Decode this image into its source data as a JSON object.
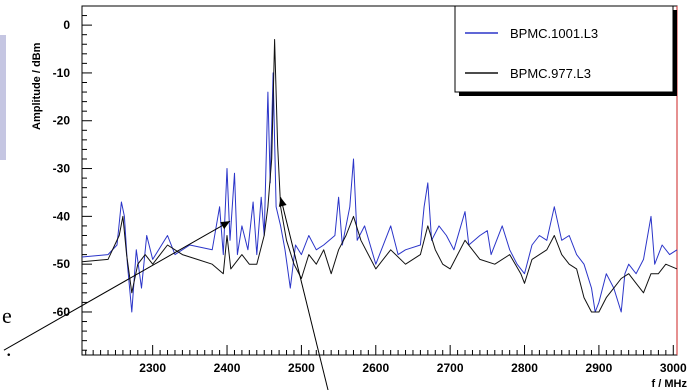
{
  "chart_data": {
    "type": "line",
    "title": "",
    "xlabel": "f / MHz",
    "ylabel": "Amplitude / dBm",
    "xlim": [
      2205,
      3005
    ],
    "ylim": [
      -69,
      4
    ],
    "x_ticks": [
      2300,
      2400,
      2500,
      2600,
      2700,
      2800,
      2900,
      3000
    ],
    "x_tick_labels": [
      "2300",
      "2400",
      "2500",
      "2600",
      "2700",
      "2800",
      "2900",
      "3000"
    ],
    "y_ticks": [
      0,
      -10,
      -20,
      -30,
      -40,
      -50,
      -60
    ],
    "y_tick_labels": [
      "0",
      "-10",
      "-20",
      "-30",
      "-40",
      "-50",
      "-60"
    ],
    "grid": false,
    "legend_position": "top-right",
    "series": [
      {
        "name": "BPMC.1001.L3",
        "color": "#2b35c9",
        "points": [
          [
            2205,
            -48.5
          ],
          [
            2240,
            -48
          ],
          [
            2252,
            -46
          ],
          [
            2258,
            -37
          ],
          [
            2262,
            -40
          ],
          [
            2266,
            -50
          ],
          [
            2272,
            -60
          ],
          [
            2278,
            -47
          ],
          [
            2285,
            -55
          ],
          [
            2292,
            -44
          ],
          [
            2300,
            -49
          ],
          [
            2320,
            -44
          ],
          [
            2330,
            -48
          ],
          [
            2350,
            -46
          ],
          [
            2380,
            -47
          ],
          [
            2390,
            -38
          ],
          [
            2395,
            -48
          ],
          [
            2400,
            -30
          ],
          [
            2404,
            -45
          ],
          [
            2410,
            -31
          ],
          [
            2414,
            -48
          ],
          [
            2420,
            -42
          ],
          [
            2428,
            -47
          ],
          [
            2435,
            -37
          ],
          [
            2440,
            -48
          ],
          [
            2446,
            -36
          ],
          [
            2450,
            -44
          ],
          [
            2455,
            -14
          ],
          [
            2458,
            -33
          ],
          [
            2462,
            -10
          ],
          [
            2466,
            -38
          ],
          [
            2472,
            -42
          ],
          [
            2478,
            -47
          ],
          [
            2485,
            -55
          ],
          [
            2492,
            -46
          ],
          [
            2500,
            -48
          ],
          [
            2510,
            -44
          ],
          [
            2520,
            -47
          ],
          [
            2530,
            -46
          ],
          [
            2545,
            -44
          ],
          [
            2550,
            -36
          ],
          [
            2555,
            -46
          ],
          [
            2565,
            -38
          ],
          [
            2570,
            -28
          ],
          [
            2575,
            -45
          ],
          [
            2585,
            -42
          ],
          [
            2600,
            -50
          ],
          [
            2620,
            -42
          ],
          [
            2630,
            -48
          ],
          [
            2640,
            -47
          ],
          [
            2660,
            -46
          ],
          [
            2665,
            -38
          ],
          [
            2670,
            -33
          ],
          [
            2675,
            -45
          ],
          [
            2685,
            -42
          ],
          [
            2695,
            -44
          ],
          [
            2705,
            -47
          ],
          [
            2720,
            -39
          ],
          [
            2725,
            -46
          ],
          [
            2740,
            -44
          ],
          [
            2750,
            -43
          ],
          [
            2755,
            -48
          ],
          [
            2770,
            -42
          ],
          [
            2780,
            -47
          ],
          [
            2790,
            -50
          ],
          [
            2800,
            -52
          ],
          [
            2810,
            -46
          ],
          [
            2820,
            -44
          ],
          [
            2830,
            -45
          ],
          [
            2840,
            -38
          ],
          [
            2850,
            -45
          ],
          [
            2860,
            -44
          ],
          [
            2870,
            -48
          ],
          [
            2880,
            -50
          ],
          [
            2890,
            -55
          ],
          [
            2895,
            -60
          ],
          [
            2900,
            -58
          ],
          [
            2910,
            -52
          ],
          [
            2920,
            -55
          ],
          [
            2930,
            -60
          ],
          [
            2935,
            -52
          ],
          [
            2940,
            -50
          ],
          [
            2950,
            -52
          ],
          [
            2960,
            -49
          ],
          [
            2970,
            -40
          ],
          [
            2975,
            -50
          ],
          [
            2985,
            -46
          ],
          [
            2995,
            -48
          ],
          [
            3005,
            -47
          ]
        ]
      },
      {
        "name": "BPMC.977.L3",
        "color": "#111111",
        "points": [
          [
            2205,
            -49.5
          ],
          [
            2240,
            -49
          ],
          [
            2255,
            -44
          ],
          [
            2260,
            -40
          ],
          [
            2265,
            -48
          ],
          [
            2272,
            -56
          ],
          [
            2280,
            -50
          ],
          [
            2290,
            -48
          ],
          [
            2300,
            -50
          ],
          [
            2320,
            -46
          ],
          [
            2340,
            -48
          ],
          [
            2360,
            -49
          ],
          [
            2380,
            -50
          ],
          [
            2395,
            -52
          ],
          [
            2400,
            -44
          ],
          [
            2405,
            -51
          ],
          [
            2420,
            -48
          ],
          [
            2430,
            -50
          ],
          [
            2440,
            -50
          ],
          [
            2450,
            -44
          ],
          [
            2455,
            -38
          ],
          [
            2460,
            -28
          ],
          [
            2464,
            -3
          ],
          [
            2468,
            -25
          ],
          [
            2472,
            -38
          ],
          [
            2480,
            -45
          ],
          [
            2490,
            -50
          ],
          [
            2500,
            -53
          ],
          [
            2510,
            -48
          ],
          [
            2520,
            -50
          ],
          [
            2530,
            -47
          ],
          [
            2540,
            -52
          ],
          [
            2550,
            -47
          ],
          [
            2560,
            -44
          ],
          [
            2570,
            -40
          ],
          [
            2580,
            -45
          ],
          [
            2600,
            -51
          ],
          [
            2620,
            -47
          ],
          [
            2640,
            -50
          ],
          [
            2660,
            -48
          ],
          [
            2670,
            -42
          ],
          [
            2680,
            -47
          ],
          [
            2690,
            -50
          ],
          [
            2700,
            -51
          ],
          [
            2720,
            -45
          ],
          [
            2740,
            -49
          ],
          [
            2760,
            -50
          ],
          [
            2780,
            -48
          ],
          [
            2795,
            -52
          ],
          [
            2800,
            -54
          ],
          [
            2810,
            -49
          ],
          [
            2830,
            -47
          ],
          [
            2840,
            -44
          ],
          [
            2850,
            -48
          ],
          [
            2860,
            -50
          ],
          [
            2870,
            -51
          ],
          [
            2880,
            -57
          ],
          [
            2890,
            -60
          ],
          [
            2900,
            -60
          ],
          [
            2910,
            -57
          ],
          [
            2920,
            -55
          ],
          [
            2930,
            -53
          ],
          [
            2940,
            -52
          ],
          [
            2950,
            -54
          ],
          [
            2960,
            -56
          ],
          [
            2970,
            -52
          ],
          [
            2980,
            -52
          ],
          [
            2990,
            -50
          ],
          [
            3005,
            -51
          ]
        ]
      }
    ],
    "annotations": [
      {
        "type": "arrow",
        "from": [
          2100,
          -68
        ],
        "to": [
          2404,
          -41
        ]
      },
      {
        "type": "arrow",
        "from": [
          2540,
          -79
        ],
        "to": [
          2472,
          -36
        ]
      }
    ]
  },
  "side_text": {
    "fragment_top": "e",
    "fragment_bottom": "."
  },
  "colors": {
    "background": "#ffffff",
    "axis": "#000000",
    "right_frame": "#cc2222",
    "legend_shadow": "#000000",
    "side_bar": "#c5c6e2"
  }
}
